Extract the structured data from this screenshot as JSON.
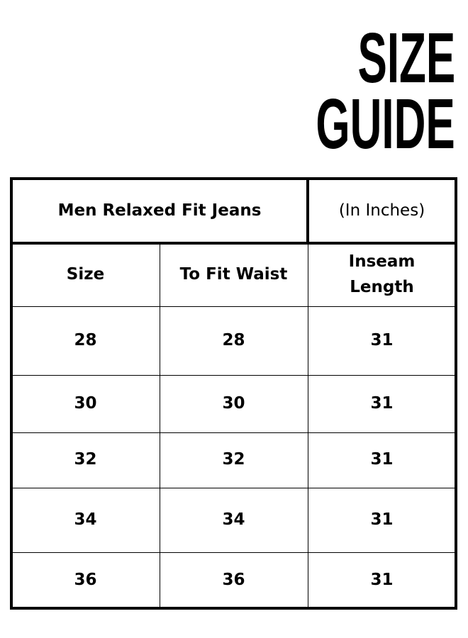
{
  "title": {
    "line1": "SIZE",
    "line2": "GUIDE"
  },
  "table": {
    "caption": "Men Relaxed Fit Jeans",
    "unit": "(In Inches)",
    "columns": [
      "Size",
      "To Fit Waist",
      "Inseam Length"
    ],
    "rows": [
      [
        "28",
        "28",
        "31"
      ],
      [
        "30",
        "30",
        "31"
      ],
      [
        "32",
        "32",
        "31"
      ],
      [
        "34",
        "34",
        "31"
      ],
      [
        "36",
        "36",
        "31"
      ]
    ]
  }
}
